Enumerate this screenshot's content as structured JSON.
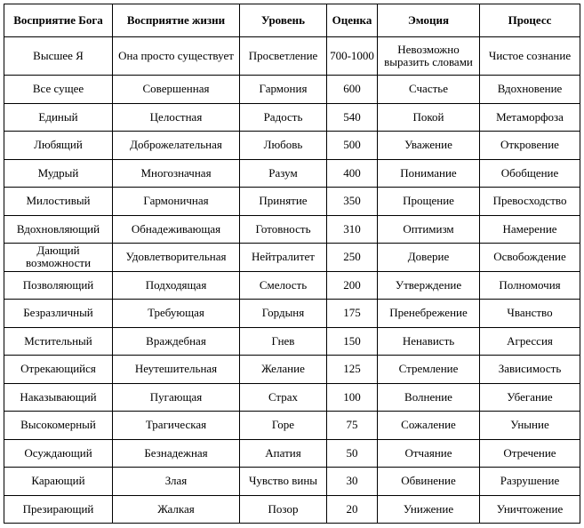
{
  "table": {
    "header": [
      "Восприятие Бога",
      "Восприятие жизни",
      "Уровень",
      "Оценка",
      "Эмоция",
      "Процесс"
    ],
    "rows": [
      [
        "Высшее Я",
        "Она просто существует",
        "Просветление",
        "700-1000",
        "Невозможно выразить словами",
        "Чистое сознание"
      ],
      [
        "Все сущее",
        "Совершенная",
        "Гармония",
        "600",
        "Счастье",
        "Вдохновение"
      ],
      [
        "Единый",
        "Целостная",
        "Радость",
        "540",
        "Покой",
        "Метаморфоза"
      ],
      [
        "Любящий",
        "Доброжелательная",
        "Любовь",
        "500",
        "Уважение",
        "Откровение"
      ],
      [
        "Мудрый",
        "Многозначная",
        "Разум",
        "400",
        "Понимание",
        "Обобщение"
      ],
      [
        "Милостивый",
        "Гармоничная",
        "Принятие",
        "350",
        "Прощение",
        "Превосходство"
      ],
      [
        "Вдохновляющий",
        "Обнадеживающая",
        "Готовность",
        "310",
        "Оптимизм",
        "Намерение"
      ],
      [
        "Дающий возможности",
        "Удовлетворительная",
        "Нейтралитет",
        "250",
        "Доверие",
        "Освобождение"
      ],
      [
        "Позволяющий",
        "Подходящая",
        "Смелость",
        "200",
        "Утверждение",
        "Полномочия"
      ],
      [
        "Безразличный",
        "Требующая",
        "Гордыня",
        "175",
        "Пренебрежение",
        "Чванство"
      ],
      [
        "Мстительный",
        "Враждебная",
        "Гнев",
        "150",
        "Ненависть",
        "Агрессия"
      ],
      [
        "Отрекающийся",
        "Неутешительная",
        "Желание",
        "125",
        "Стремление",
        "Зависимость"
      ],
      [
        "Наказывающий",
        "Пугающая",
        "Страх",
        "100",
        "Волнение",
        "Убегание"
      ],
      [
        "Высокомерный",
        "Трагическая",
        "Горе",
        "75",
        "Сожаление",
        "Уныние"
      ],
      [
        "Осуждающий",
        "Безнадежная",
        "Апатия",
        "50",
        "Отчаяние",
        "Отречение"
      ],
      [
        "Карающий",
        "Злая",
        "Чувство вины",
        "30",
        "Обвинение",
        "Разрушение"
      ],
      [
        "Презирающий",
        "Жалкая",
        "Позор",
        "20",
        "Унижение",
        "Уничтожение"
      ]
    ]
  }
}
